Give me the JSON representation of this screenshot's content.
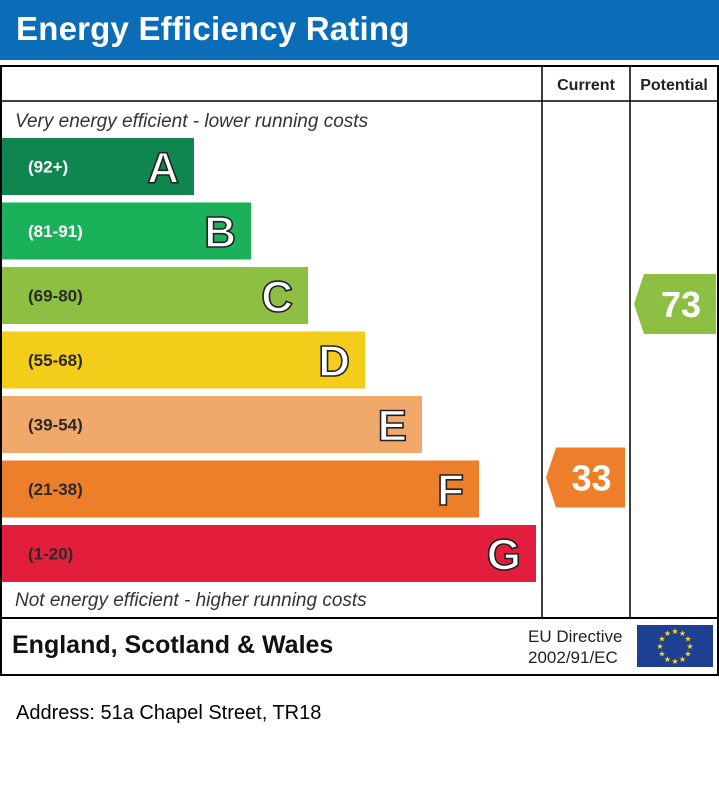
{
  "header": {
    "title": "Energy Efficiency Rating"
  },
  "columns": {
    "current": "Current",
    "potential": "Potential"
  },
  "notes": {
    "top": "Very energy efficient - lower running costs",
    "bottom": "Not energy efficient - higher running costs"
  },
  "footer": {
    "region": "England, Scotland & Wales",
    "directive_line1": "EU Directive",
    "directive_line2": "2002/91/EC"
  },
  "colors": {
    "header": "#0b6db7",
    "A": "#0f8550",
    "B": "#1bb15a",
    "C": "#8dbf43",
    "D": "#f4cc1a",
    "E": "#f1a86b",
    "F": "#ee7f2a",
    "G": "#e21e3c",
    "current_arrow": "#ee7f2a",
    "potential_arrow": "#8dbf43",
    "eu_flag": "#1f3f93",
    "eu_stars": "#ffde00"
  },
  "chart_data": {
    "type": "bar",
    "title": "Energy Efficiency Rating",
    "bands": [
      {
        "letter": "A",
        "range": "(92+)"
      },
      {
        "letter": "B",
        "range": "(81-91)"
      },
      {
        "letter": "C",
        "range": "(69-80)"
      },
      {
        "letter": "D",
        "range": "(55-68)"
      },
      {
        "letter": "E",
        "range": "(39-54)"
      },
      {
        "letter": "F",
        "range": "(21-38)"
      },
      {
        "letter": "G",
        "range": "(1-20)"
      }
    ],
    "current": {
      "value": 33,
      "band": "F"
    },
    "potential": {
      "value": 73,
      "band": "C"
    }
  },
  "address": "Address: 51a Chapel Street, TR18"
}
